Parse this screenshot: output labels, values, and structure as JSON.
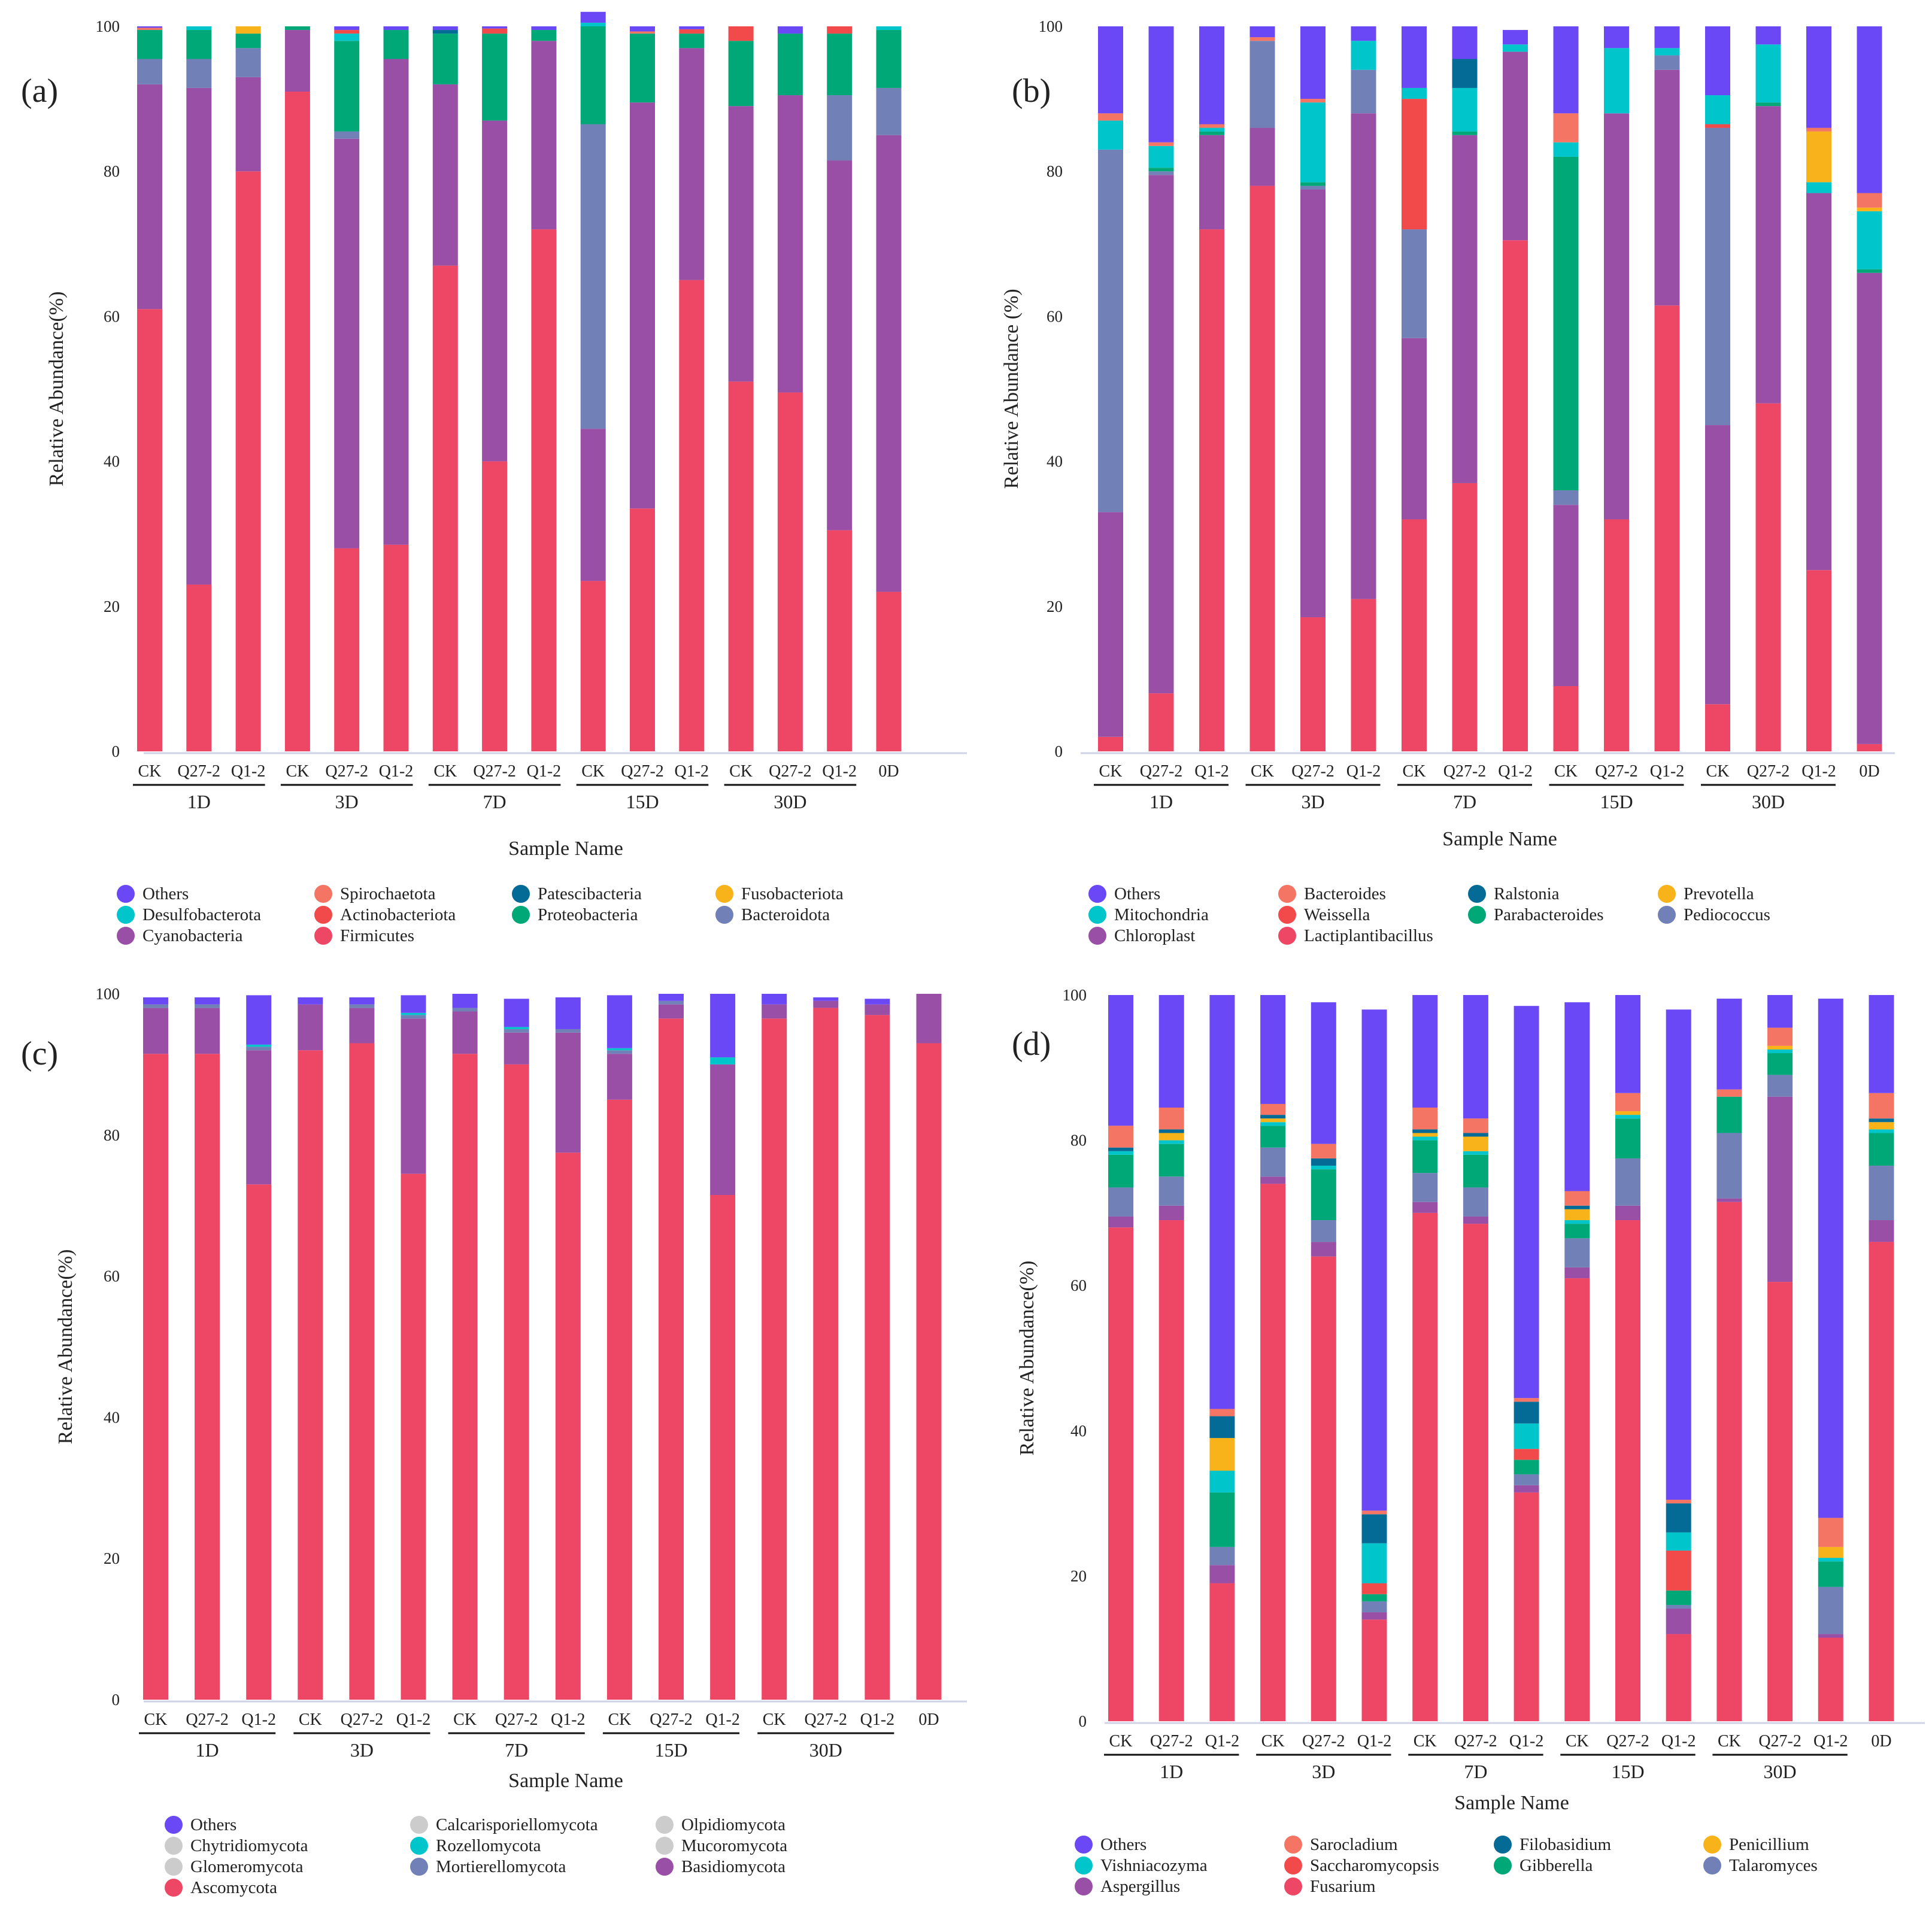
{
  "colors": {
    "Others": "#6a48f5",
    "c2": "#00c6cc",
    "c3": "#9a4fa6",
    "c4": "#f47564",
    "c5": "#f24a4a",
    "c6": "#ee4766",
    "c7": "#046a96",
    "c8": "#00a878",
    "c9": "#f8b31a",
    "c10": "#7181b8"
  },
  "chart_data": [
    {
      "type": "bar",
      "stacked": true,
      "panel": "(a)",
      "xlabel": "Sample Name",
      "ylabel": "Relative Abundance(%)",
      "ylim": [
        0,
        100
      ],
      "yticks": [
        "0",
        "20",
        "40",
        "60",
        "80",
        "100"
      ],
      "categories": [
        "CK",
        "Q27-2",
        "Q1-2",
        "CK",
        "Q27-2",
        "Q1-2",
        "CK",
        "Q27-2",
        "Q1-2",
        "CK",
        "Q27-2",
        "Q1-2",
        "CK",
        "Q27-2",
        "Q1-2",
        "0D"
      ],
      "groups": [
        "1D",
        "3D",
        "7D",
        "15D",
        "30D"
      ],
      "legend": [
        "Others",
        "Spirochaetota",
        "Patescibacteria",
        "Fusobacteriota",
        "Desulfobacterota",
        "Actinobacteriota",
        "Proteobacteria",
        "Bacteroidota",
        "Cyanobacteria",
        "Firmicutes"
      ],
      "series": [
        {
          "name": "Firmicutes",
          "color": "c6",
          "values": [
            61,
            23,
            80,
            91,
            28,
            28.5,
            67,
            40,
            72,
            23.5,
            33.5,
            65,
            51,
            49.5,
            30.5,
            22
          ]
        },
        {
          "name": "Cyanobacteria",
          "color": "c3",
          "values": [
            31,
            68.5,
            13,
            8.5,
            56.5,
            67,
            25,
            47,
            26,
            21,
            56,
            32,
            38,
            41,
            51,
            63
          ]
        },
        {
          "name": "Bacteroidota",
          "color": "c10",
          "values": [
            3.5,
            4,
            4,
            0,
            1,
            0,
            0,
            0,
            0,
            42,
            0,
            0,
            0,
            0,
            9,
            6.5
          ]
        },
        {
          "name": "Proteobacteria",
          "color": "c8",
          "values": [
            4,
            4,
            2,
            0.5,
            12.5,
            4,
            7,
            12,
            1.5,
            13.5,
            9.5,
            2,
            9,
            8.5,
            8.5,
            8
          ]
        },
        {
          "name": "Fusobacteriota",
          "color": "c9",
          "values": [
            0,
            0,
            1,
            0,
            0,
            0,
            0,
            0,
            0,
            0,
            0,
            0,
            0,
            0,
            0,
            0
          ]
        },
        {
          "name": "Patescibacteria",
          "color": "c7",
          "values": [
            0,
            0,
            0,
            0,
            0,
            0,
            0.5,
            0,
            0,
            0,
            0,
            0,
            0,
            0,
            0,
            0
          ]
        },
        {
          "name": "Desulfobacterota",
          "color": "c2",
          "values": [
            0,
            0.5,
            0,
            0,
            1,
            0,
            0,
            0,
            0,
            0.5,
            0,
            0,
            0,
            0,
            0,
            0.5
          ]
        },
        {
          "name": "Actinobacteriota",
          "color": "c5",
          "values": [
            0,
            0,
            0,
            0,
            0.5,
            0,
            0,
            0.7,
            0,
            0,
            0,
            0.6,
            2,
            0,
            1,
            0
          ]
        },
        {
          "name": "Spirochaetota",
          "color": "c4",
          "values": [
            0.3,
            0,
            0,
            0,
            0,
            0,
            0,
            0,
            0,
            0,
            0.3,
            0,
            0,
            0,
            0,
            0
          ]
        },
        {
          "name": "Others",
          "color": "Others",
          "values": [
            0.2,
            0,
            0,
            0,
            0.5,
            0.5,
            0.5,
            0.3,
            0.5,
            1.5,
            0.7,
            0.4,
            0,
            1,
            0,
            0
          ]
        }
      ]
    },
    {
      "type": "bar",
      "stacked": true,
      "panel": "(b)",
      "xlabel": "Sample Name",
      "ylabel": "Relative Abundance (%)",
      "ylim": [
        0,
        100
      ],
      "yticks": [
        "0",
        "20",
        "40",
        "60",
        "80",
        "100"
      ],
      "categories": [
        "CK",
        "Q27-2",
        "Q1-2",
        "CK",
        "Q27-2",
        "Q1-2",
        "CK",
        "Q27-2",
        "Q1-2",
        "CK",
        "Q27-2",
        "Q1-2",
        "CK",
        "Q27-2",
        "Q1-2",
        "0D"
      ],
      "groups": [
        "1D",
        "3D",
        "7D",
        "15D",
        "30D"
      ],
      "legend": [
        "Others",
        "Bacteroides",
        "Ralstonia",
        "Prevotella",
        "Mitochondria",
        "Weissella",
        "Parabacteroides",
        "Pediococcus",
        "Chloroplast",
        "Lactiplantibacillus"
      ],
      "series": [
        {
          "name": "Lactiplantibacillus",
          "color": "c6",
          "values": [
            2,
            8,
            72,
            78,
            18.5,
            21,
            32,
            37,
            70.5,
            9,
            32,
            61.5,
            6.5,
            48,
            25,
            1
          ]
        },
        {
          "name": "Chloroplast",
          "color": "c3",
          "values": [
            31,
            71.5,
            13,
            8,
            59,
            67,
            25,
            48,
            26,
            25,
            56,
            32.5,
            38.5,
            41,
            52,
            65
          ]
        },
        {
          "name": "Pediococcus",
          "color": "c10",
          "values": [
            50,
            0.5,
            0,
            12,
            0.5,
            6,
            15,
            0,
            0,
            2,
            0,
            2,
            41,
            0,
            0,
            0
          ]
        },
        {
          "name": "Parabacteroides",
          "color": "c8",
          "values": [
            0,
            0.5,
            0.5,
            0,
            0.5,
            0,
            0,
            0.5,
            0,
            46,
            0,
            0,
            0,
            0.5,
            0,
            0.5
          ]
        },
        {
          "name": "Weissella",
          "color": "c5",
          "values": [
            0,
            0,
            0,
            0,
            0,
            0,
            18,
            0,
            0,
            0,
            0,
            0,
            0.5,
            0,
            0,
            0
          ]
        },
        {
          "name": "Mitochondria",
          "color": "c2",
          "values": [
            4,
            3,
            0.5,
            0,
            11,
            4,
            1.5,
            6,
            1,
            2,
            9,
            1,
            4,
            8,
            1.5,
            8
          ]
        },
        {
          "name": "Prevotella",
          "color": "c9",
          "values": [
            0,
            0,
            0,
            0,
            0,
            0,
            0,
            0,
            0,
            0,
            0,
            0,
            0,
            0,
            7,
            0.5
          ]
        },
        {
          "name": "Ralstonia",
          "color": "c7",
          "values": [
            0,
            0,
            0,
            0,
            0,
            0,
            0,
            4,
            0,
            0,
            0,
            0,
            0,
            0,
            0,
            0
          ]
        },
        {
          "name": "Bacteroides",
          "color": "c4",
          "values": [
            1,
            0.5,
            0.5,
            0.5,
            0.5,
            0,
            0,
            0,
            0,
            4,
            0,
            0,
            0,
            0,
            0.5,
            2
          ]
        },
        {
          "name": "Others",
          "color": "Others",
          "values": [
            12,
            16,
            13.5,
            1.5,
            10,
            2,
            8.5,
            4.5,
            2,
            12,
            3,
            3,
            9.5,
            2.5,
            14,
            23
          ]
        }
      ]
    },
    {
      "type": "bar",
      "stacked": true,
      "panel": "(c)",
      "xlabel": "Sample Name",
      "ylabel": "Relative Abundance(%)",
      "ylim": [
        0,
        100
      ],
      "yticks": [
        "0",
        "20",
        "40",
        "60",
        "80",
        "100"
      ],
      "categories": [
        "CK",
        "Q27-2",
        "Q1-2",
        "CK",
        "Q27-2",
        "Q1-2",
        "CK",
        "Q27-2",
        "Q1-2",
        "CK",
        "Q27-2",
        "Q1-2",
        "CK",
        "Q27-2",
        "Q1-2",
        "0D"
      ],
      "groups": [
        "1D",
        "3D",
        "7D",
        "15D",
        "30D"
      ],
      "legend": [
        "Others",
        "Calcarisporiellomycota",
        "Olpidiomycota",
        "Chytridiomycota",
        "Rozellomycota",
        "Mucoromycota",
        "Glomeromycota",
        "Mortierellomycota",
        "Basidiomycota",
        "Ascomycota"
      ],
      "series": [
        {
          "name": "Ascomycota",
          "color": "c6",
          "values": [
            91.5,
            91.5,
            73,
            92,
            93,
            74.5,
            91.5,
            90,
            77.5,
            85,
            96.5,
            71.5,
            96.5,
            98,
            97,
            93
          ]
        },
        {
          "name": "Basidiomycota",
          "color": "c3",
          "values": [
            6.5,
            6.5,
            19,
            6.5,
            5,
            22,
            6,
            4.5,
            17,
            6.5,
            2,
            18.5,
            2,
            1,
            1.5,
            7
          ]
        },
        {
          "name": "Mortierellomycota",
          "color": "c10",
          "values": [
            0.5,
            0.5,
            0.5,
            0,
            0.5,
            0.5,
            0.5,
            0.5,
            0.5,
            0.5,
            0.5,
            0,
            0,
            0,
            0,
            0
          ]
        },
        {
          "name": "Rozellomycota",
          "color": "c2",
          "values": [
            0,
            0,
            0.3,
            0,
            0,
            0.3,
            0,
            0.3,
            0,
            0.3,
            0,
            1,
            0,
            0,
            0,
            0
          ]
        },
        {
          "name": "Others",
          "color": "Others",
          "values": [
            1,
            1,
            7,
            1,
            1,
            2.5,
            2,
            4,
            4.5,
            7.5,
            1,
            9,
            1.5,
            0.5,
            0.8,
            0
          ]
        }
      ]
    },
    {
      "type": "bar",
      "stacked": true,
      "panel": "(d)",
      "xlabel": "Sample Name",
      "ylabel": "Relative Abundance(%)",
      "ylim": [
        0,
        100
      ],
      "yticks": [
        "0",
        "20",
        "40",
        "60",
        "80",
        "100"
      ],
      "categories": [
        "CK",
        "Q27-2",
        "Q1-2",
        "CK",
        "Q27-2",
        "Q1-2",
        "CK",
        "Q27-2",
        "Q1-2",
        "CK",
        "Q27-2",
        "Q1-2",
        "CK",
        "Q27-2",
        "Q1-2",
        "0D"
      ],
      "groups": [
        "1D",
        "3D",
        "7D",
        "15D",
        "30D"
      ],
      "legend": [
        "Others",
        "Sarocladium",
        "Filobasidium",
        "Penicillium",
        "Vishniacozyma",
        "Saccharomycopsis",
        "Gibberella",
        "Talaromyces",
        "Aspergillus",
        "Fusarium"
      ],
      "series": [
        {
          "name": "Fusarium",
          "color": "c6",
          "values": [
            68,
            69,
            19,
            74,
            64,
            14,
            70,
            68.5,
            31.5,
            61,
            69,
            12,
            71.5,
            60.5,
            11.5,
            66
          ]
        },
        {
          "name": "Aspergillus",
          "color": "c3",
          "values": [
            1.5,
            2,
            2.5,
            1,
            2,
            1,
            1.5,
            1,
            1,
            1.5,
            2,
            3.5,
            0.5,
            25.5,
            0.5,
            3
          ]
        },
        {
          "name": "Talaromyces",
          "color": "c10",
          "values": [
            4,
            4,
            2.5,
            4,
            3,
            1.5,
            4,
            4,
            1.5,
            4,
            6.5,
            0.5,
            9,
            3,
            6.5,
            7.5
          ]
        },
        {
          "name": "Gibberella",
          "color": "c8",
          "values": [
            4.5,
            4.5,
            7.5,
            3,
            7,
            1,
            4.5,
            4.5,
            2,
            2,
            5.5,
            2,
            5,
            3,
            3.5,
            4.5
          ]
        },
        {
          "name": "Saccharomycopsis",
          "color": "c5",
          "values": [
            0,
            0,
            0,
            0,
            0,
            1.5,
            0,
            0,
            1.5,
            0,
            0,
            5.5,
            0,
            0,
            0,
            0
          ]
        },
        {
          "name": "Vishniacozyma",
          "color": "c2",
          "values": [
            0.5,
            0.5,
            3,
            0.5,
            0.5,
            5.5,
            0.5,
            0.5,
            3.5,
            0.5,
            0.5,
            2.5,
            0,
            0.5,
            0.5,
            0.5
          ]
        },
        {
          "name": "Penicillium",
          "color": "c9",
          "values": [
            0,
            1,
            4.5,
            0.5,
            0,
            0,
            0.5,
            2,
            0,
            1.5,
            0.5,
            0,
            0,
            0.5,
            1.5,
            1
          ]
        },
        {
          "name": "Filobasidium",
          "color": "c7",
          "values": [
            0.5,
            0.5,
            3,
            0.5,
            1,
            4,
            0.5,
            0.5,
            3,
            0.5,
            0,
            4,
            0,
            0,
            0,
            0.5
          ]
        },
        {
          "name": "Sarocladium",
          "color": "c4",
          "values": [
            3,
            3,
            1,
            1.5,
            2,
            0.5,
            3,
            2,
            0.5,
            2,
            2.5,
            0.5,
            1,
            2.5,
            4,
            3.5
          ]
        },
        {
          "name": "Others",
          "color": "Others",
          "values": [
            18,
            15.5,
            57,
            15,
            19.5,
            69,
            15.5,
            17,
            54,
            26,
            13.5,
            67.5,
            12.5,
            4.5,
            71.5,
            13.5
          ]
        }
      ]
    }
  ]
}
